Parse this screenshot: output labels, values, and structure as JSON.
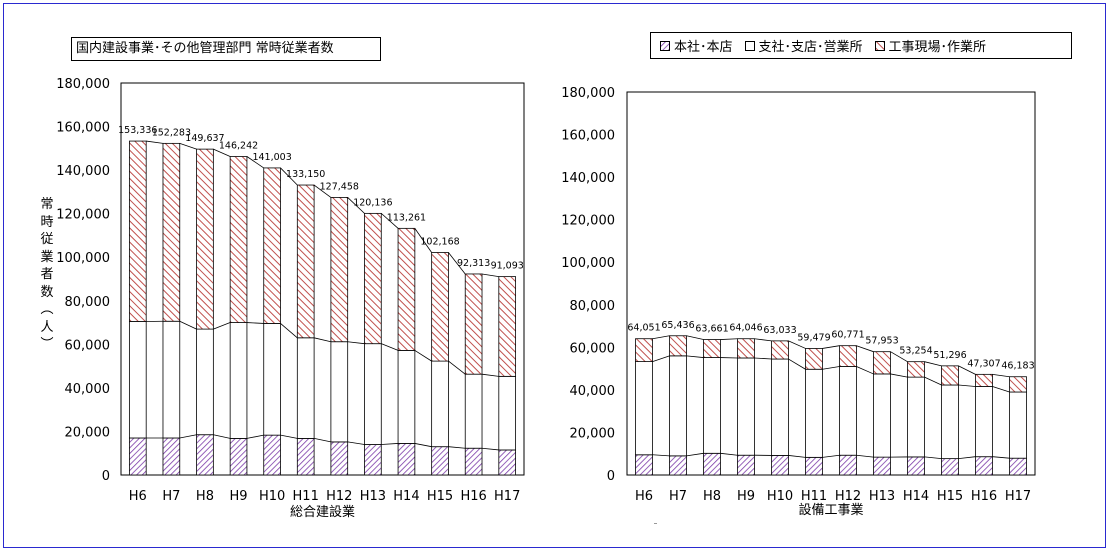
{
  "title": "国内建設事業･その他管理部門 常時従業者数",
  "ylabel": "常時従業者数（人）",
  "legend": [
    {
      "label": "本社･本店",
      "pattern": "diagonal-purple"
    },
    {
      "label": "支社･支店･営業所",
      "pattern": "white"
    },
    {
      "label": "工事現場･作業所",
      "pattern": "diagonal-red"
    }
  ],
  "colors": {
    "headquarters": "#7a3aa8",
    "site": "#c0504d",
    "frame": "#2a2ad0"
  },
  "chart_data": [
    {
      "type": "bar",
      "stacked": true,
      "xlabel": "総合建設業",
      "ylabel": "常時従業者数（人）",
      "ylim": [
        0,
        180000
      ],
      "yticks": [
        "0",
        "20,000",
        "40,000",
        "60,000",
        "80,000",
        "100,000",
        "120,000",
        "140,000",
        "160,000",
        "180,000"
      ],
      "categories": [
        "H6",
        "H7",
        "H8",
        "H9",
        "H10",
        "H11",
        "H12",
        "H13",
        "H14",
        "H15",
        "H16",
        "H17"
      ],
      "series": [
        {
          "name": "本社･本店",
          "values": [
            17000,
            17000,
            18500,
            16800,
            18300,
            16800,
            15200,
            14000,
            14500,
            13000,
            12300,
            11500
          ]
        },
        {
          "name": "支社･支店･営業所",
          "values": [
            53500,
            53600,
            48500,
            53200,
            51300,
            46200,
            46000,
            46300,
            42700,
            39300,
            34000,
            33800
          ]
        },
        {
          "name": "工事現場･作業所",
          "values": [
            82836,
            81683,
            82637,
            76242,
            71403,
            70150,
            66258,
            59836,
            56061,
            49868,
            46013,
            45793
          ]
        }
      ],
      "totals": [
        153336,
        152283,
        149637,
        146242,
        141003,
        133150,
        127458,
        120136,
        113261,
        102168,
        92313,
        91093
      ],
      "total_labels": [
        "153,336",
        "152,283",
        "149,637",
        "146,242",
        "141,003",
        "133,150",
        "127,458",
        "120,136",
        "113,261",
        "102,168",
        "92,313",
        "91,093"
      ]
    },
    {
      "type": "bar",
      "stacked": true,
      "xlabel": "設備工事業",
      "ylabel": "",
      "ylim": [
        0,
        180000
      ],
      "yticks": [
        "0",
        "20,000",
        "40,000",
        "60,000",
        "80,000",
        "100,000",
        "120,000",
        "140,000",
        "160,000",
        "180,000"
      ],
      "categories": [
        "H6",
        "H7",
        "H8",
        "H9",
        "H10",
        "H11",
        "H12",
        "H13",
        "H14",
        "H15",
        "H16",
        "H17"
      ],
      "series": [
        {
          "name": "本社･本店",
          "values": [
            9500,
            9000,
            10200,
            9300,
            9200,
            8300,
            9300,
            8400,
            8500,
            7700,
            8600,
            7900
          ]
        },
        {
          "name": "支社･支店･営業所",
          "values": [
            43800,
            47000,
            45000,
            45700,
            45300,
            41400,
            41700,
            39100,
            37500,
            34600,
            33000,
            31100
          ]
        },
        {
          "name": "工事現場･作業所",
          "values": [
            10751,
            9436,
            8461,
            9046,
            8533,
            9779,
            9771,
            10453,
            7254,
            8996,
            5707,
            7183
          ]
        }
      ],
      "totals": [
        64051,
        65436,
        63661,
        64046,
        63033,
        59479,
        60771,
        57953,
        53254,
        51296,
        47307,
        46183
      ],
      "total_labels": [
        "64,051",
        "65,436",
        "63,661",
        "64,046",
        "63,033",
        "59,479",
        "60,771",
        "57,953",
        "53,254",
        "51,296",
        "47,307",
        "46,183"
      ]
    }
  ]
}
